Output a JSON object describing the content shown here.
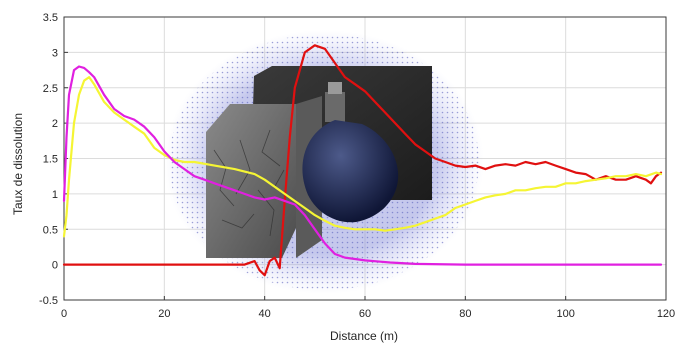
{
  "chart_data": {
    "type": "line",
    "title": "",
    "xlabel": "Distance (m)",
    "ylabel": "Taux de dissolution",
    "xlim": [
      0,
      120
    ],
    "ylim": [
      -0.5,
      3.5
    ],
    "xticks": [
      "0",
      "20",
      "40",
      "60",
      "80",
      "100",
      "120"
    ],
    "yticks": [
      "-0.5",
      "0",
      "0.5",
      "1",
      "1.5",
      "2",
      "2.5",
      "3",
      "3.5"
    ],
    "grid": true,
    "legend": "none",
    "background_image": "3D rendering of a cracked rock block with a dark blue bulb-shaped canister inside a blue meshed ellipsoid",
    "series": [
      {
        "color": "#e01010",
        "x": [
          0,
          10,
          20,
          30,
          36,
          38,
          39,
          40,
          41,
          42,
          43,
          44,
          45,
          46,
          48,
          50,
          52,
          54,
          56,
          58,
          60,
          62,
          64,
          66,
          68,
          70,
          72,
          74,
          76,
          78,
          80,
          82,
          84,
          86,
          88,
          90,
          92,
          94,
          96,
          98,
          100,
          102,
          104,
          106,
          108,
          110,
          112,
          114,
          116,
          117,
          118,
          119
        ],
        "y": [
          0,
          0,
          0,
          0,
          0,
          0.05,
          -0.08,
          -0.15,
          0.05,
          0.1,
          -0.05,
          0.9,
          1.8,
          2.5,
          3.0,
          3.1,
          3.05,
          2.85,
          2.65,
          2.55,
          2.45,
          2.3,
          2.15,
          2.0,
          1.85,
          1.7,
          1.6,
          1.5,
          1.45,
          1.4,
          1.38,
          1.4,
          1.35,
          1.4,
          1.42,
          1.4,
          1.45,
          1.42,
          1.45,
          1.4,
          1.35,
          1.3,
          1.28,
          1.2,
          1.25,
          1.2,
          1.2,
          1.25,
          1.2,
          1.15,
          1.25,
          1.3
        ]
      },
      {
        "color": "#f5f534",
        "x": [
          0,
          0.5,
          1,
          2,
          3,
          4,
          5,
          6,
          8,
          10,
          12,
          14,
          16,
          18,
          20,
          22,
          24,
          26,
          30,
          34,
          38,
          40,
          44,
          48,
          50,
          52,
          54,
          56,
          58,
          60,
          62,
          64,
          66,
          68,
          70,
          72,
          74,
          76,
          78,
          80,
          82,
          84,
          86,
          88,
          90,
          92,
          94,
          96,
          98,
          100,
          102,
          104,
          106,
          108,
          110,
          112,
          114,
          116,
          118,
          119
        ],
        "y": [
          0.4,
          0.7,
          1.2,
          2.0,
          2.4,
          2.6,
          2.65,
          2.55,
          2.3,
          2.15,
          2.05,
          1.95,
          1.85,
          1.65,
          1.55,
          1.48,
          1.45,
          1.45,
          1.4,
          1.35,
          1.28,
          1.2,
          1.0,
          0.8,
          0.7,
          0.62,
          0.55,
          0.52,
          0.5,
          0.5,
          0.5,
          0.48,
          0.5,
          0.52,
          0.55,
          0.6,
          0.65,
          0.7,
          0.8,
          0.85,
          0.9,
          0.95,
          0.98,
          1.0,
          1.05,
          1.05,
          1.08,
          1.1,
          1.1,
          1.15,
          1.15,
          1.18,
          1.2,
          1.22,
          1.25,
          1.25,
          1.28,
          1.25,
          1.3,
          1.28
        ]
      },
      {
        "color": "#e020e0",
        "x": [
          0,
          0.5,
          1,
          2,
          3,
          4,
          5,
          6,
          8,
          10,
          12,
          14,
          16,
          18,
          20,
          22,
          24,
          26,
          28,
          30,
          32,
          34,
          36,
          38,
          40,
          42,
          44,
          46,
          48,
          50,
          52,
          54,
          56,
          58,
          60,
          65,
          70,
          80,
          90,
          100,
          110,
          119
        ],
        "y": [
          0.9,
          1.8,
          2.4,
          2.75,
          2.8,
          2.78,
          2.72,
          2.65,
          2.4,
          2.2,
          2.1,
          2.05,
          1.95,
          1.8,
          1.6,
          1.45,
          1.35,
          1.25,
          1.2,
          1.15,
          1.1,
          1.05,
          1.0,
          0.95,
          0.92,
          0.95,
          0.9,
          0.85,
          0.7,
          0.5,
          0.3,
          0.15,
          0.1,
          0.08,
          0.06,
          0.03,
          0.01,
          0,
          0,
          0,
          0,
          0
        ]
      }
    ]
  }
}
